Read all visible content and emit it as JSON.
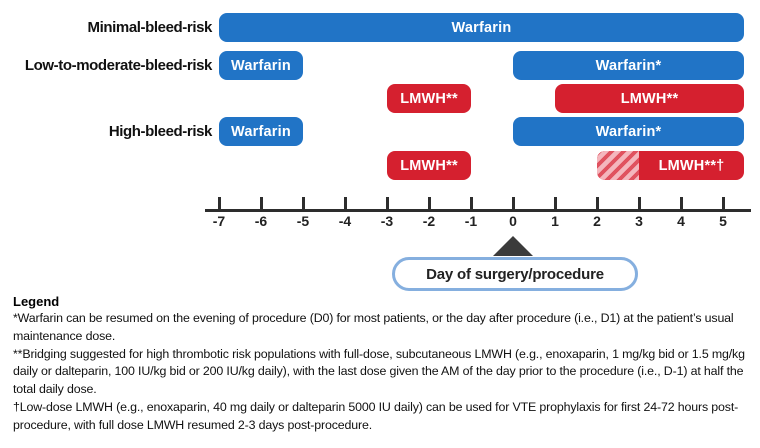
{
  "chart_data": {
    "type": "bar",
    "subtype": "horizontal-gantt-timeline",
    "title": "",
    "x_axis": {
      "ticks": [
        -7,
        -6,
        -5,
        -4,
        -3,
        -2,
        -1,
        0,
        1,
        2,
        3,
        4,
        5
      ],
      "xlim": [
        -7.35,
        5.65
      ],
      "annotation": {
        "day": 0,
        "label": "Day of surgery/procedure"
      }
    },
    "rows": [
      {
        "group_label": "Minimal-bleed-risk",
        "segments": [
          {
            "label": "Warfarin",
            "drug": "warfarin",
            "start": -7,
            "end": 5.5
          }
        ]
      },
      {
        "group_label": "Low-to-moderate-bleed-risk",
        "segments": [
          {
            "label": "Warfarin",
            "drug": "warfarin",
            "start": -7,
            "end": -5
          },
          {
            "label": "Warfarin*",
            "drug": "warfarin",
            "start": 0,
            "end": 5.5
          }
        ]
      },
      {
        "group_label": "",
        "segments": [
          {
            "label": "LMWH**",
            "drug": "lmwh",
            "start": -3,
            "end": -1
          },
          {
            "label": "LMWH**",
            "drug": "lmwh",
            "start": 1,
            "end": 5.5
          }
        ]
      },
      {
        "group_label": "High-bleed-risk",
        "segments": [
          {
            "label": "Warfarin",
            "drug": "warfarin",
            "start": -7,
            "end": -5
          },
          {
            "label": "Warfarin*",
            "drug": "warfarin",
            "start": 0,
            "end": 5.5
          }
        ]
      },
      {
        "group_label": "",
        "segments": [
          {
            "label": "LMWH**",
            "drug": "lmwh",
            "start": -3,
            "end": -1
          },
          {
            "label": "LMWH**†",
            "drug": "lmwh",
            "start": 2,
            "end": 5.5,
            "hatched": {
              "start": 2,
              "end": 3
            }
          }
        ]
      }
    ],
    "colors": {
      "warfarin_blue": "#2174c6",
      "lmwh_red": "#d5202f",
      "hatch_pink": "#f4b6bd",
      "hatch_stripe_red": "#e0525f",
      "pill_border_blue": "#85afdf",
      "axis": "#2d2d2d"
    }
  },
  "legend": {
    "heading": "Legend",
    "footnotes": [
      "*Warfarin can be resumed on the evening of procedure (D0) for most patients, or the day after procedure (i.e., D1) at the patient’s usual maintenance dose.",
      "**Bridging suggested for high thrombotic risk populations with full-dose, subcutaneous LMWH (e.g., enoxaparin, 1 mg/kg bid or 1.5 mg/kg daily or dalteparin, 100 IU/kg bid or 200 IU/kg daily), with the last dose given the AM of the day prior to the procedure (i.e., D-1) at half the total daily dose.",
      "†Low-dose LMWH (e.g., enoxaparin, 40 mg daily or dalteparin 5000 IU daily) can be used for VTE prophylaxis for first 24-72 hours post-procedure, with full dose LMWH resumed 2-3 days post-procedure."
    ]
  }
}
